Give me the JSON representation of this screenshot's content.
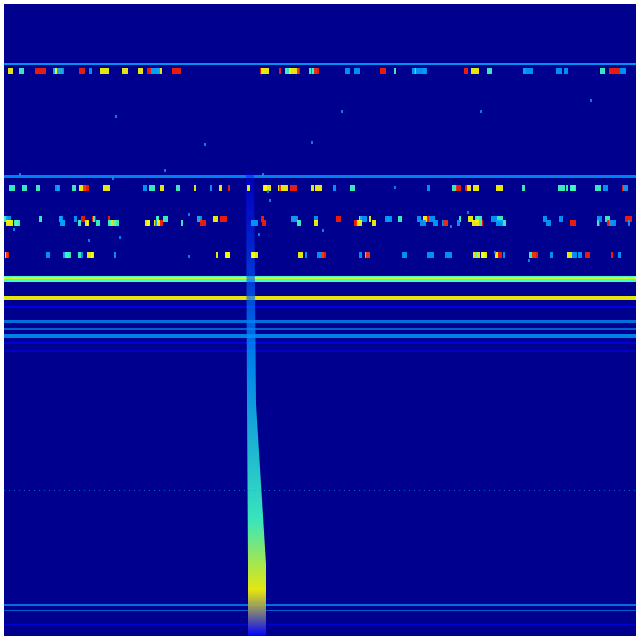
{
  "image": {
    "kind": "waterfall-heatmap",
    "colormap": "jet",
    "colors": {
      "background": "#00008f",
      "low": "#0000ff",
      "mid_low": "#00a0ff",
      "mid": "#40ffc0",
      "mid_high": "#ffff00",
      "high": "#ff2000"
    },
    "axes_shown": false,
    "text_shown": false
  }
}
